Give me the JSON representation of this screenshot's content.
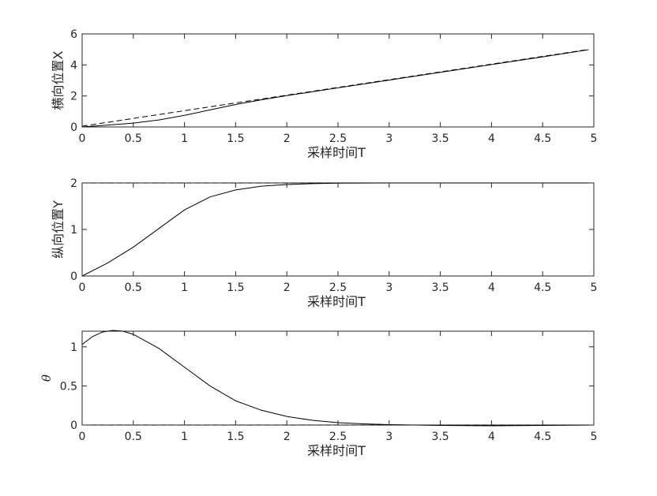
{
  "chart_data": [
    {
      "type": "line",
      "xlabel": "采样时间T",
      "ylabel": "横向位置X",
      "xlim": [
        0,
        5
      ],
      "ylim": [
        0,
        6
      ],
      "xticks": [
        "0",
        "0.5",
        "1",
        "1.5",
        "2",
        "2.5",
        "3",
        "3.5",
        "4",
        "4.5",
        "5"
      ],
      "yticks": [
        "0",
        "2",
        "4",
        "6"
      ],
      "grid": false,
      "series": [
        {
          "style": "dashed",
          "color": "#000000",
          "x": [
            0,
            4.95
          ],
          "y": [
            0.05,
            5.0
          ]
        },
        {
          "style": "solid",
          "color": "#000000",
          "x": [
            0,
            0.25,
            0.5,
            0.75,
            1.0,
            1.25,
            1.5,
            1.75,
            2.0,
            2.25,
            2.5,
            3.0,
            3.5,
            4.0,
            4.5,
            4.95
          ],
          "y": [
            0.0,
            0.12,
            0.25,
            0.45,
            0.75,
            1.1,
            1.45,
            1.75,
            2.02,
            2.27,
            2.52,
            3.02,
            3.52,
            4.02,
            4.52,
            4.98
          ]
        }
      ]
    },
    {
      "type": "line",
      "xlabel": "采样时间T",
      "ylabel": "纵向位置Y",
      "xlim": [
        0,
        5
      ],
      "ylim": [
        0,
        2
      ],
      "xticks": [
        "0",
        "0.5",
        "1",
        "1.5",
        "2",
        "2.5",
        "3",
        "3.5",
        "4",
        "4.5",
        "5"
      ],
      "yticks": [
        "0",
        "1",
        "2"
      ],
      "grid": false,
      "series": [
        {
          "style": "dashed",
          "color": "#000000",
          "x": [
            0,
            4.65
          ],
          "y": [
            2.0,
            2.0
          ]
        },
        {
          "style": "solid",
          "color": "#000000",
          "x": [
            0,
            0.25,
            0.5,
            0.75,
            1.0,
            1.25,
            1.5,
            1.75,
            2.0,
            2.25,
            2.5,
            3.0,
            3.5,
            4.0,
            4.5,
            4.95
          ],
          "y": [
            0.0,
            0.28,
            0.62,
            1.02,
            1.42,
            1.7,
            1.85,
            1.93,
            1.965,
            1.985,
            1.995,
            2.0,
            2.0,
            2.0,
            2.0,
            2.0
          ]
        }
      ]
    },
    {
      "type": "line",
      "xlabel": "采样时间T",
      "ylabel": "θ",
      "xlim": [
        0,
        5
      ],
      "ylim": [
        0,
        1.2
      ],
      "xticks": [
        "0",
        "0.5",
        "1",
        "1.5",
        "2",
        "2.5",
        "3",
        "3.5",
        "4",
        "4.5",
        "5"
      ],
      "yticks": [
        "0",
        "0.5",
        "1"
      ],
      "grid": false,
      "series": [
        {
          "style": "dashed",
          "color": "#000000",
          "x": [
            0,
            5
          ],
          "y": [
            0.0,
            0.0
          ]
        },
        {
          "style": "solid",
          "color": "#000000",
          "x": [
            0,
            0.1,
            0.2,
            0.3,
            0.4,
            0.5,
            0.75,
            1.0,
            1.25,
            1.5,
            1.75,
            2.0,
            2.25,
            2.5,
            2.75,
            3.0,
            3.5,
            4.0,
            4.5,
            5.0
          ],
          "y": [
            1.03,
            1.13,
            1.19,
            1.21,
            1.2,
            1.16,
            0.98,
            0.74,
            0.5,
            0.31,
            0.19,
            0.11,
            0.06,
            0.03,
            0.015,
            0.005,
            -0.005,
            -0.01,
            -0.005,
            0.0
          ]
        }
      ]
    }
  ]
}
